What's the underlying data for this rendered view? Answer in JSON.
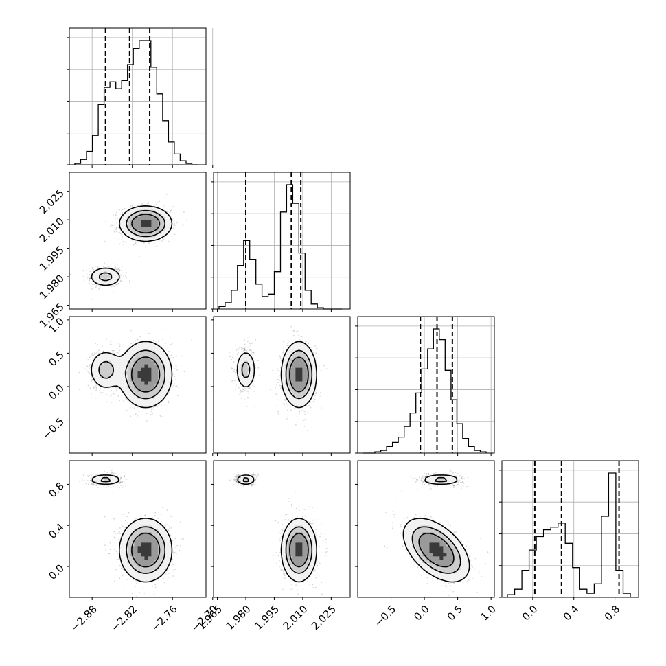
{
  "chart_data": {
    "type": "corner",
    "parameters": [
      {
        "ticks": [
          -2.88,
          -2.82,
          -2.76,
          -2.7
        ],
        "tick_labels": [
          "−2.88",
          "−2.82",
          "−2.76",
          "−2.70"
        ],
        "range": [
          -2.914,
          -2.71
        ],
        "quantiles": [
          -2.86,
          -2.824,
          -2.794
        ],
        "hist": [
          1,
          4,
          10,
          22,
          45,
          58,
          62,
          57,
          63,
          75,
          87,
          93,
          93,
          73,
          53,
          33,
          17,
          8,
          3,
          1,
          0
        ]
      },
      {
        "ticks": [
          1.965,
          1.98,
          1.995,
          2.01,
          2.025
        ],
        "tick_labels": [
          "1.965",
          "1.980",
          "1.995",
          "2.010",
          "2.025"
        ],
        "range": [
          1.963,
          2.035
        ],
        "quantiles": [
          1.98,
          2.004,
          2.009
        ],
        "hist": [
          2,
          5,
          15,
          35,
          55,
          40,
          20,
          10,
          12,
          30,
          78,
          100,
          85,
          45,
          15,
          4,
          1,
          0,
          0,
          0
        ]
      },
      {
        "ticks": [
          -0.5,
          0.0,
          0.5,
          1.0
        ],
        "tick_labels": [
          "−0.5",
          "0.0",
          "0.5",
          "1.0"
        ],
        "range": [
          -1.0,
          1.05
        ],
        "quantiles": [
          -0.06,
          0.19,
          0.42
        ],
        "hist": [
          0,
          0,
          1,
          2,
          5,
          8,
          12,
          20,
          30,
          45,
          63,
          78,
          93,
          85,
          62,
          40,
          22,
          11,
          5,
          2,
          1
        ]
      },
      {
        "ticks": [
          0.0,
          0.4,
          0.8
        ],
        "tick_labels": [
          "0.0",
          "0.4",
          "0.8"
        ],
        "range": [
          -0.3,
          1.03
        ],
        "quantiles": [
          0.02,
          0.28,
          0.84
        ],
        "hist": [
          2,
          6,
          20,
          35,
          45,
          50,
          52,
          55,
          40,
          22,
          6,
          3,
          10,
          60,
          92,
          20,
          3
        ]
      }
    ],
    "modes": [
      {
        "weight": 0.3,
        "mean": [
          -2.86,
          1.98,
          0.25,
          0.845
        ],
        "sd": [
          0.013,
          0.0028,
          0.16,
          0.027
        ]
      },
      {
        "weight": 0.7,
        "mean": [
          -2.8,
          2.008,
          0.18,
          0.16
        ],
        "sd": [
          0.019,
          0.0045,
          0.24,
          0.15
        ],
        "corr_2_3": -0.5
      }
    ],
    "contour_levels": [
      0.12,
      0.32,
      0.55
    ],
    "grid": true
  }
}
